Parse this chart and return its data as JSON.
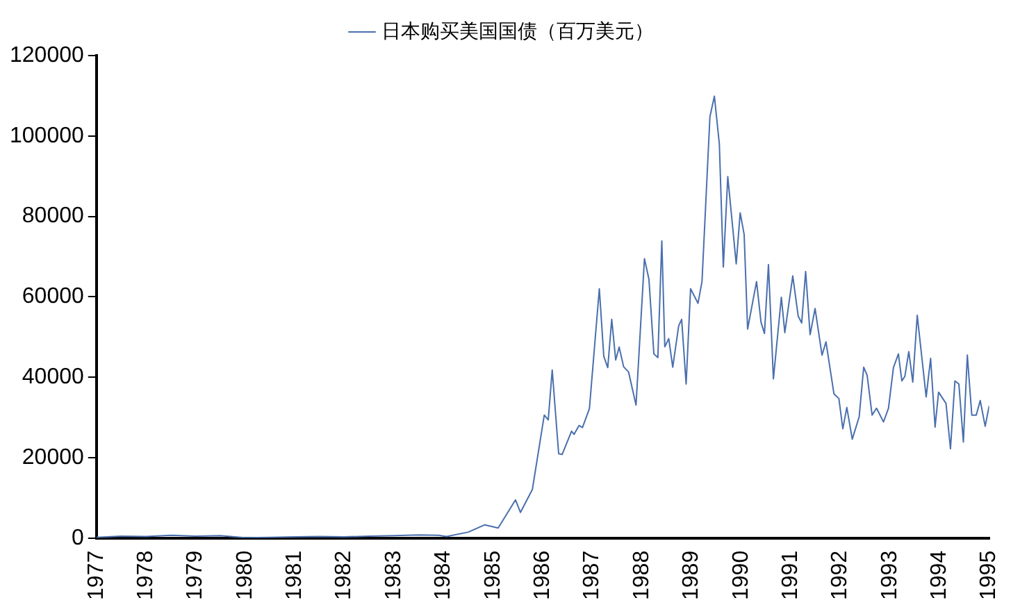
{
  "chart_data": {
    "type": "line",
    "legend": "top",
    "grid": false,
    "marker": "none",
    "line_style": "solid",
    "xlim": [
      1977,
      1995
    ],
    "xticks": [
      1977,
      1978,
      1979,
      1980,
      1981,
      1982,
      1983,
      1984,
      1985,
      1986,
      1987,
      1988,
      1989,
      1990,
      1991,
      1992,
      1993,
      1994,
      1995
    ],
    "ylim": [
      0,
      120000
    ],
    "yticks": [
      0,
      20000,
      40000,
      60000,
      80000,
      100000,
      120000
    ],
    "series": [
      {
        "name": "日本购买美国国债（百万美元）",
        "color": "#4a6fae",
        "x": [
          1977.0,
          1977.5,
          1978.0,
          1978.5,
          1979.0,
          1979.5,
          1980.0,
          1980.5,
          1981.0,
          1981.5,
          1982.0,
          1982.5,
          1983.0,
          1983.5,
          1983.9,
          1984.06,
          1984.5,
          1984.83,
          1985.1,
          1985.45,
          1985.55,
          1985.79,
          1986.03,
          1986.11,
          1986.19,
          1986.32,
          1986.39,
          1986.58,
          1986.63,
          1986.73,
          1986.8,
          1986.94,
          1987.14,
          1987.23,
          1987.31,
          1987.39,
          1987.47,
          1987.54,
          1987.63,
          1987.73,
          1987.88,
          1988.05,
          1988.14,
          1988.24,
          1988.32,
          1988.4,
          1988.46,
          1988.54,
          1988.62,
          1988.74,
          1988.8,
          1988.89,
          1988.98,
          1989.13,
          1989.21,
          1989.37,
          1989.46,
          1989.56,
          1989.64,
          1989.73,
          1989.9,
          1989.98,
          1990.06,
          1990.13,
          1990.31,
          1990.4,
          1990.47,
          1990.55,
          1990.65,
          1990.81,
          1990.88,
          1991.04,
          1991.15,
          1991.22,
          1991.3,
          1991.39,
          1991.49,
          1991.63,
          1991.71,
          1991.87,
          1991.97,
          1992.05,
          1992.13,
          1992.24,
          1992.38,
          1992.47,
          1992.54,
          1992.64,
          1992.73,
          1992.87,
          1992.97,
          1993.07,
          1993.17,
          1993.24,
          1993.3,
          1993.38,
          1993.46,
          1993.55,
          1993.73,
          1993.82,
          1993.91,
          1993.98,
          1994.13,
          1994.22,
          1994.31,
          1994.39,
          1994.48,
          1994.56,
          1994.65,
          1994.74,
          1994.82,
          1994.92,
          1995.0
        ],
        "values": [
          200,
          500,
          400,
          700,
          500,
          600,
          100,
          200,
          300,
          400,
          300,
          500,
          600,
          800,
          700,
          400,
          1500,
          3300,
          2500,
          9500,
          6400,
          12100,
          30600,
          29400,
          41800,
          21000,
          20800,
          26600,
          25800,
          28000,
          27500,
          32200,
          62000,
          45200,
          42400,
          54400,
          44300,
          47500,
          42600,
          41300,
          33100,
          69500,
          64400,
          45800,
          44900,
          73900,
          47600,
          49600,
          42500,
          52800,
          54400,
          38300,
          62000,
          58400,
          63800,
          104800,
          109900,
          98000,
          67400,
          89900,
          68200,
          80900,
          75500,
          52000,
          63800,
          53700,
          50900,
          68000,
          39600,
          59900,
          51100,
          65200,
          55200,
          53500,
          66300,
          50600,
          57100,
          45500,
          48800,
          35900,
          34700,
          27200,
          32500,
          24600,
          30200,
          42500,
          40500,
          30600,
          32300,
          28900,
          32300,
          42400,
          45800,
          39100,
          40200,
          46400,
          38800,
          55400,
          35100,
          44700,
          27600,
          36300,
          33500,
          22200,
          39100,
          38300,
          23900,
          45500,
          30600,
          30600,
          34200,
          27800,
          32900
        ]
      }
    ]
  }
}
